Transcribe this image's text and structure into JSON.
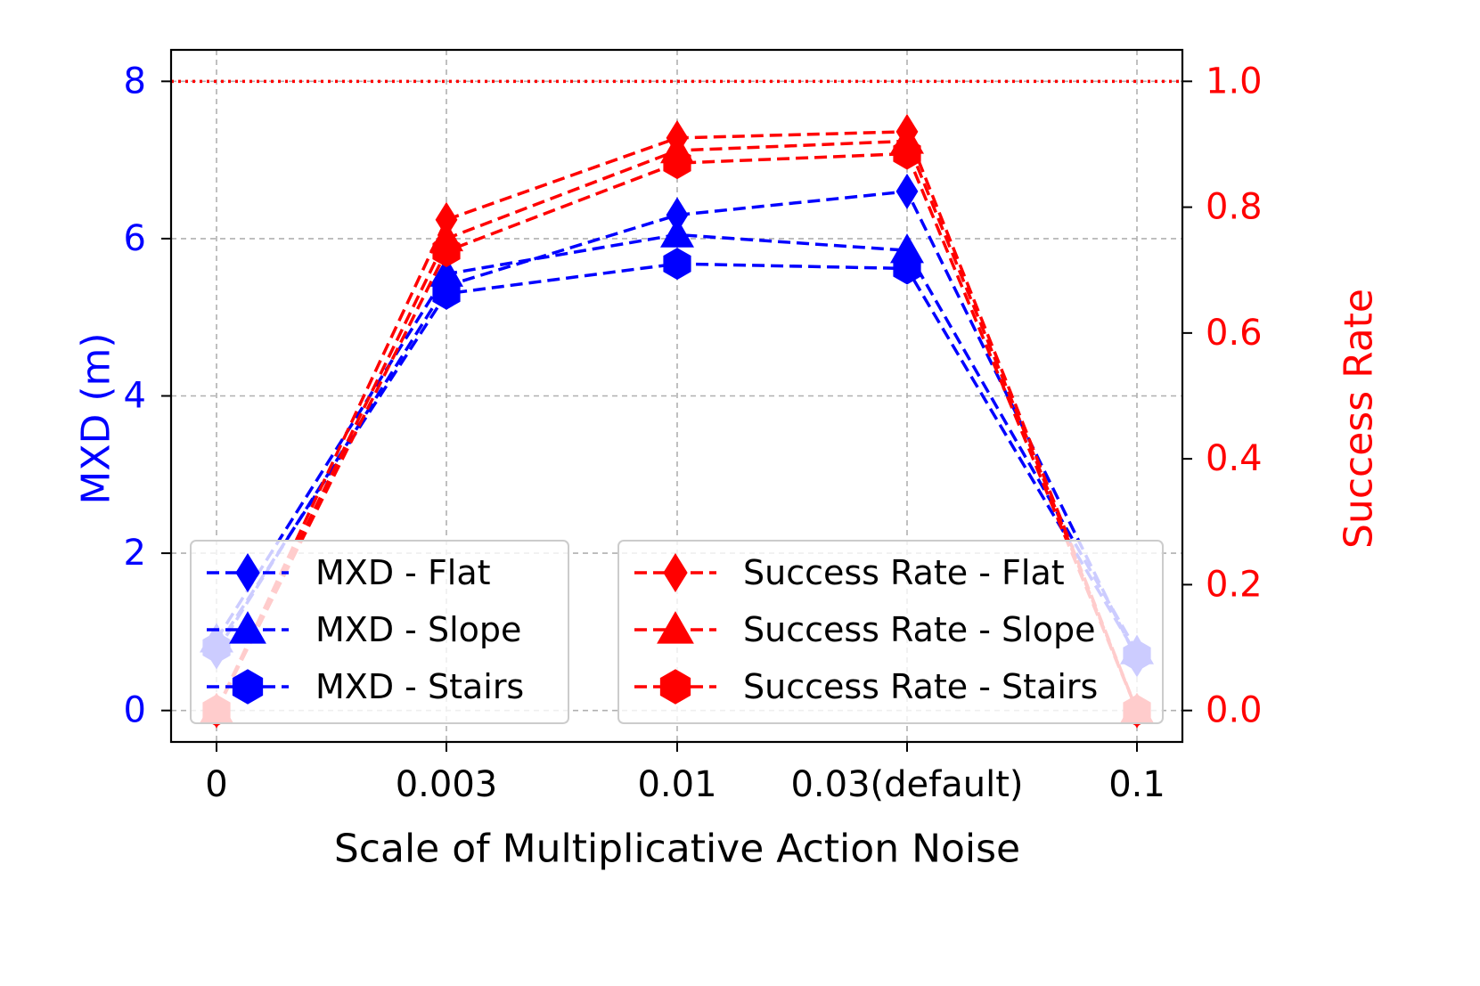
{
  "chart_data": {
    "type": "line",
    "xlabel": "Scale of Multiplicative Action Noise",
    "ylabel_left": "MXD (m)",
    "ylabel_right": "Success Rate",
    "categories": [
      "0",
      "0.003",
      "0.01",
      "0.03(default)",
      "0.1"
    ],
    "ylim_left": [
      -0.4,
      8.4
    ],
    "ylim_right": [
      -0.05,
      1.05
    ],
    "yticks_left": [
      0,
      2,
      4,
      6,
      8
    ],
    "yticks_right": [
      0.0,
      0.2,
      0.4,
      0.6,
      0.8,
      1.0
    ],
    "ytick_labels_left": [
      "0",
      "2",
      "4",
      "6",
      "8"
    ],
    "ytick_labels_right": [
      "0.0",
      "0.2",
      "0.4",
      "0.6",
      "0.8",
      "1.0"
    ],
    "grid": true,
    "reference_line": {
      "axis": "right",
      "value": 1.0,
      "style": "dotted",
      "color": "#ff0000"
    },
    "colors": {
      "mxd": "#0000ff",
      "success": "#ff0000"
    },
    "series": [
      {
        "name": "MXD - Flat",
        "axis": "left",
        "marker": "diamond",
        "values": [
          0.75,
          5.4,
          6.3,
          6.6,
          0.65
        ]
      },
      {
        "name": "MXD - Slope",
        "axis": "left",
        "marker": "triangle",
        "values": [
          0.9,
          5.55,
          6.05,
          5.85,
          0.75
        ]
      },
      {
        "name": "MXD - Stairs",
        "axis": "left",
        "marker": "hexagon",
        "values": [
          0.8,
          5.3,
          5.68,
          5.62,
          0.7
        ]
      },
      {
        "name": "Success Rate - Flat",
        "axis": "right",
        "marker": "diamond",
        "values": [
          0.0,
          0.78,
          0.91,
          0.92,
          0.0
        ]
      },
      {
        "name": "Success Rate - Slope",
        "axis": "right",
        "marker": "triangle",
        "values": [
          0.0,
          0.75,
          0.89,
          0.905,
          0.0
        ]
      },
      {
        "name": "Success Rate - Stairs",
        "axis": "right",
        "marker": "hexagon",
        "values": [
          0.0,
          0.73,
          0.87,
          0.885,
          0.0
        ]
      }
    ],
    "legends": [
      {
        "placement": "lower-left",
        "entries": [
          "MXD - Flat",
          "MXD - Slope",
          "MXD - Stairs"
        ]
      },
      {
        "placement": "lower-right",
        "entries": [
          "Success Rate - Flat",
          "Success Rate - Slope",
          "Success Rate - Stairs"
        ]
      }
    ]
  }
}
